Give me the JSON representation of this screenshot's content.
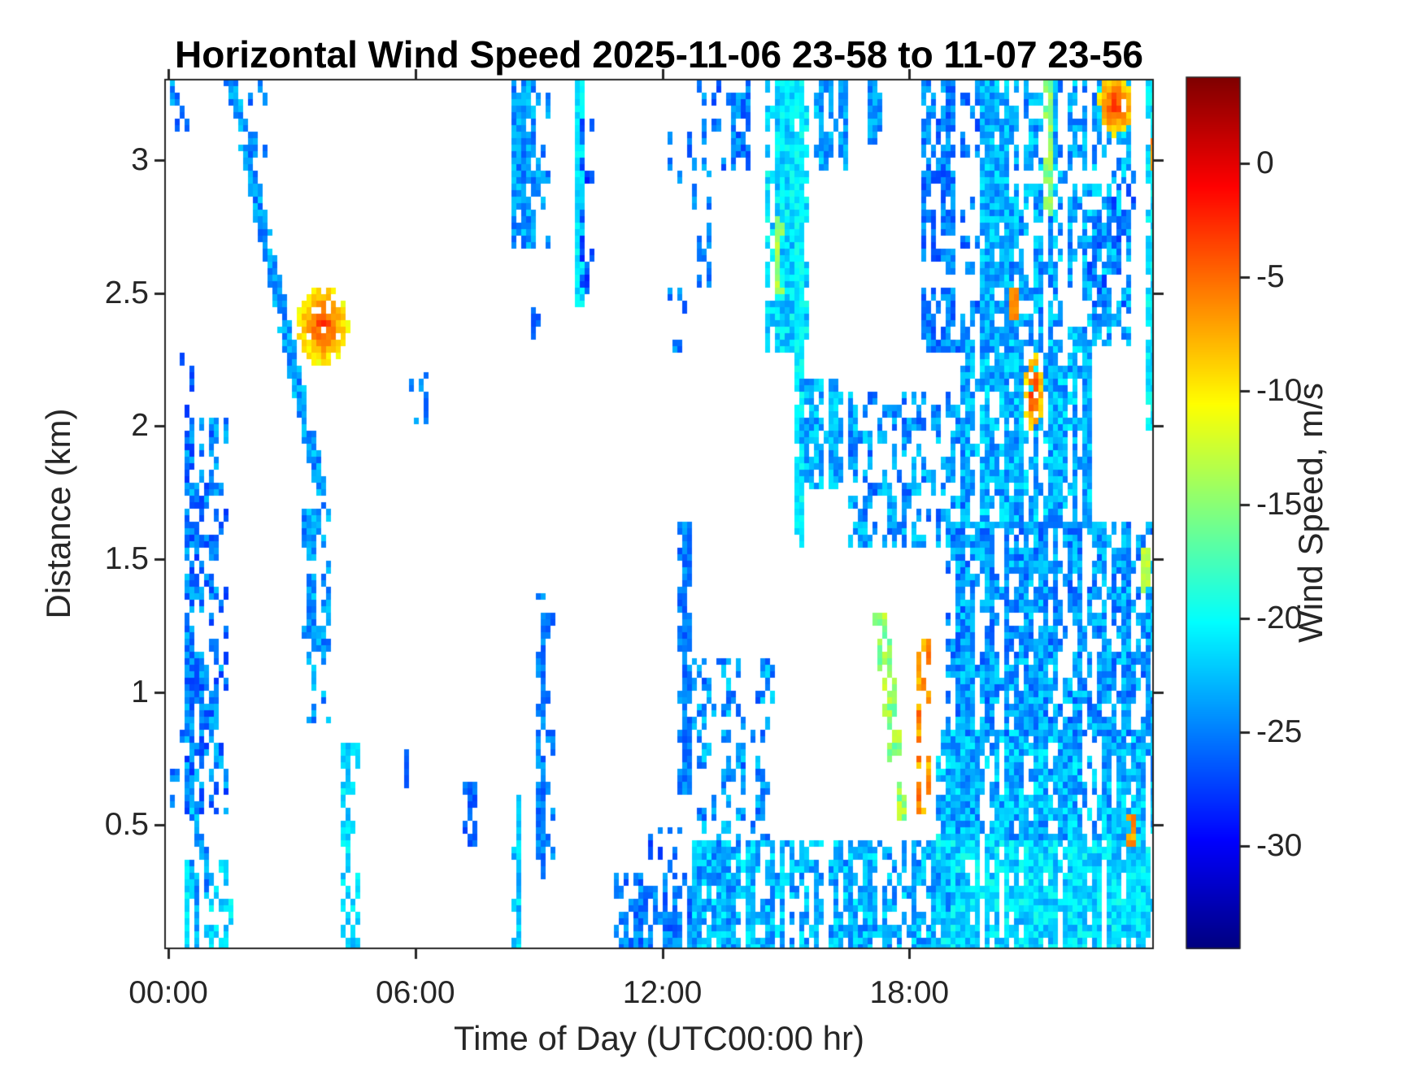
{
  "chart_data": {
    "type": "heatmap",
    "title": "Horizontal Wind Speed 2025-11-06 23-58 to 11-07 23-56",
    "xlabel": "Time of Day (UTC00:00 hr)",
    "ylabel": "Distance (km)",
    "colorbar_label": "Wind Speed, m/s",
    "colormap": "jet",
    "no_data_color": "#ffffff",
    "axis_color": "#262626",
    "grid": false,
    "x_range_hours": [
      -0.08,
      23.92
    ],
    "y_range_km": [
      0.036,
      3.303
    ],
    "clim": [
      -34.5,
      3.8
    ],
    "x_ticks": [
      {
        "hour": 0,
        "label": "00:00"
      },
      {
        "hour": 6,
        "label": "06:00"
      },
      {
        "hour": 12,
        "label": "12:00"
      },
      {
        "hour": 18,
        "label": "18:00"
      }
    ],
    "y_ticks": [
      0.5,
      1,
      1.5,
      2,
      2.5,
      3
    ],
    "colorbar_ticks": [
      0,
      -5,
      -10,
      -15,
      -20,
      -25,
      -30
    ],
    "features": [
      {
        "ty": "c",
        "t": [
          0.15,
          0.6
        ],
        "h": [
          3.08,
          3.3
        ],
        "d": 0.4,
        "v": -25,
        "s": 3
      },
      {
        "ty": "c",
        "t": [
          0.3,
          0.55
        ],
        "h": [
          1.95,
          2.28
        ],
        "d": 0.3,
        "v": -26,
        "s": 2
      },
      {
        "ty": "c",
        "t": [
          0.08,
          0.38
        ],
        "h": [
          0.58,
          0.85
        ],
        "d": 0.3,
        "v": -25,
        "s": 2
      },
      {
        "ty": "c",
        "t": [
          0.4,
          0.52
        ],
        "h": [
          0.04,
          0.36
        ],
        "d": 0.8,
        "v": -21,
        "s": 1.5
      },
      {
        "ty": "c",
        "t": [
          0.48,
          1.42
        ],
        "h": [
          0.55,
          2.02
        ],
        "d": 0.55,
        "v": -25,
        "s": 3
      },
      {
        "ty": "c",
        "t": [
          0.55,
          0.9
        ],
        "h": [
          0.04,
          0.58
        ],
        "d": 0.45,
        "v": -24,
        "s": 3
      },
      {
        "ty": "c",
        "t": [
          1.08,
          1.5
        ],
        "h": [
          0.03,
          0.35
        ],
        "d": 0.6,
        "v": -21.5,
        "s": 2
      },
      {
        "ty": "d",
        "p0": [
          1.52,
          3.3
        ],
        "p1": [
          3.7,
          1.76
        ],
        "w": 0.18,
        "d": 0.88,
        "v": -24,
        "s": 2.5
      },
      {
        "ty": "c",
        "t": [
          2.05,
          2.35
        ],
        "h": [
          2.95,
          3.3
        ],
        "d": 0.35,
        "v": -25,
        "s": 2
      },
      {
        "ty": "c",
        "t": [
          3.3,
          3.9
        ],
        "h": [
          0.9,
          1.7
        ],
        "d": 0.45,
        "v": -24,
        "s": 2.5
      },
      {
        "ty": "c",
        "t": [
          4.25,
          4.6
        ],
        "h": [
          0.04,
          0.8
        ],
        "d": 0.55,
        "v": -21.5,
        "s": 2
      },
      {
        "ty": "b",
        "t": [
          3.17,
          4.33
        ],
        "h": [
          2.24,
          2.52
        ],
        "vc": -3,
        "ve": -10,
        "d": 0.88
      },
      {
        "ty": "c",
        "t": [
          5.78,
          5.92
        ],
        "h": [
          0.64,
          0.78
        ],
        "d": 0.7,
        "v": -26,
        "s": 1
      },
      {
        "ty": "c",
        "t": [
          5.85,
          6.25
        ],
        "h": [
          2.02,
          2.18
        ],
        "d": 0.4,
        "v": -25,
        "s": 2
      },
      {
        "ty": "c",
        "t": [
          7.25,
          7.5
        ],
        "h": [
          0.42,
          0.66
        ],
        "d": 0.45,
        "v": -26,
        "s": 1.5
      },
      {
        "ty": "c",
        "t": [
          8.35,
          8.52
        ],
        "h": [
          0.04,
          0.6
        ],
        "d": 0.75,
        "v": -22,
        "s": 2.5
      },
      {
        "ty": "c",
        "t": [
          8.45,
          9.25
        ],
        "h": [
          2.68,
          3.3
        ],
        "d": 0.7,
        "v": -24,
        "s": 2.5
      },
      {
        "ty": "c",
        "t": [
          9.0,
          9.4
        ],
        "h": [
          0.3,
          1.35
        ],
        "d": 0.5,
        "v": -25,
        "s": 2
      },
      {
        "ty": "c",
        "t": [
          8.9,
          9.0
        ],
        "h": [
          2.33,
          2.44
        ],
        "d": 0.85,
        "v": -26,
        "s": 1
      },
      {
        "ty": "c",
        "t": [
          9.95,
          10.1
        ],
        "h": [
          2.45,
          3.3
        ],
        "d": 0.85,
        "v": -21,
        "s": 1.5
      },
      {
        "ty": "c",
        "t": [
          10.05,
          10.3
        ],
        "h": [
          2.5,
          3.15
        ],
        "d": 0.45,
        "v": -27,
        "s": 2
      },
      {
        "ty": "c",
        "t": [
          10.9,
          12.8
        ],
        "h": [
          0.03,
          0.3
        ],
        "d": 0.55,
        "v": -25,
        "s": 2.5
      },
      {
        "ty": "c",
        "t": [
          11.6,
          12.8
        ],
        "h": [
          0.3,
          0.48
        ],
        "d": 0.25,
        "v": -26,
        "s": 2
      },
      {
        "ty": "c",
        "t": [
          12.15,
          12.8
        ],
        "h": [
          2.82,
          3.15
        ],
        "d": 0.3,
        "v": -25,
        "s": 2
      },
      {
        "ty": "c",
        "t": [
          12.2,
          12.6
        ],
        "h": [
          2.28,
          2.52
        ],
        "d": 0.3,
        "v": -25,
        "s": 2
      },
      {
        "ty": "c",
        "t": [
          12.3,
          12.55
        ],
        "h": [
          1.85,
          2.12
        ],
        "d": 0.28,
        "v": -26,
        "s": 1.5
      },
      {
        "ty": "c",
        "t": [
          12.45,
          12.7
        ],
        "h": [
          0.62,
          1.62
        ],
        "d": 0.7,
        "v": -25,
        "s": 2
      },
      {
        "ty": "c",
        "t": [
          12.85,
          13.15
        ],
        "h": [
          2.52,
          2.85
        ],
        "d": 0.35,
        "v": -25,
        "s": 2
      },
      {
        "ty": "c",
        "t": [
          12.9,
          14.1
        ],
        "h": [
          2.95,
          3.3
        ],
        "d": 0.32,
        "v": -25,
        "s": 2.5
      },
      {
        "ty": "c",
        "t": [
          12.8,
          19.3
        ],
        "h": [
          0.03,
          0.42
        ],
        "d": 0.8,
        "v": -23,
        "s": 3
      },
      {
        "ty": "c",
        "t": [
          12.8,
          14.7
        ],
        "h": [
          0.42,
          1.12
        ],
        "d": 0.38,
        "v": -24,
        "s": 3
      },
      {
        "ty": "c",
        "t": [
          14.55,
          15.45
        ],
        "h": [
          2.3,
          3.3
        ],
        "d": 0.75,
        "v": -21.5,
        "s": 2.5
      },
      {
        "ty": "c",
        "t": [
          15.28,
          15.42
        ],
        "h": [
          1.55,
          3.3
        ],
        "d": 0.85,
        "v": -20.5,
        "s": 1.5
      },
      {
        "ty": "c",
        "t": [
          14.82,
          14.95
        ],
        "h": [
          2.52,
          2.78
        ],
        "d": 0.85,
        "v": -14,
        "s": 1.5
      },
      {
        "ty": "c",
        "t": [
          15.7,
          16.4
        ],
        "h": [
          2.98,
          3.3
        ],
        "d": 0.65,
        "v": -23.5,
        "s": 2.5
      },
      {
        "ty": "c",
        "t": [
          15.35,
          16.45
        ],
        "h": [
          1.78,
          2.16
        ],
        "d": 0.6,
        "v": -23,
        "s": 2.5
      },
      {
        "ty": "c",
        "t": [
          16.55,
          19.5
        ],
        "h": [
          1.55,
          2.12
        ],
        "d": 0.45,
        "v": -24,
        "s": 3
      },
      {
        "ty": "c",
        "t": [
          17.05,
          17.25
        ],
        "h": [
          3.08,
          3.3
        ],
        "d": 0.6,
        "v": -24,
        "s": 2
      },
      {
        "ty": "c",
        "t": [
          18.4,
          19.05
        ],
        "h": [
          2.3,
          3.3
        ],
        "d": 0.55,
        "v": -25,
        "s": 2.5
      },
      {
        "ty": "d",
        "p0": [
          17.3,
          1.28
        ],
        "p1": [
          17.85,
          0.52
        ],
        "w": 0.22,
        "d": 0.7,
        "v": -14.5,
        "s": 2.5
      },
      {
        "ty": "c",
        "t": [
          18.25,
          18.5
        ],
        "h": [
          0.55,
          1.18
        ],
        "d": 0.45,
        "v": -6.5,
        "s": 2.5
      },
      {
        "ty": "c",
        "t": [
          18.7,
          23.95
        ],
        "h": [
          0.03,
          0.45
        ],
        "d": 0.95,
        "v": -21.5,
        "s": 2.5
      },
      {
        "ty": "c",
        "t": [
          18.7,
          23.95
        ],
        "h": [
          0.45,
          0.85
        ],
        "d": 0.85,
        "v": -23,
        "s": 3
      },
      {
        "ty": "c",
        "t": [
          19.0,
          23.95
        ],
        "h": [
          0.85,
          1.62
        ],
        "d": 0.7,
        "v": -24,
        "s": 3
      },
      {
        "ty": "c",
        "t": [
          19.3,
          22.4
        ],
        "h": [
          1.62,
          2.32
        ],
        "d": 0.75,
        "v": -23,
        "s": 3
      },
      {
        "ty": "c",
        "t": [
          19.0,
          19.6
        ],
        "h": [
          2.3,
          3.3
        ],
        "d": 0.3,
        "v": -25,
        "s": 2.5
      },
      {
        "ty": "c",
        "t": [
          19.78,
          20.35
        ],
        "h": [
          2.32,
          3.3
        ],
        "d": 0.8,
        "v": -23,
        "s": 2.5
      },
      {
        "ty": "c",
        "t": [
          20.5,
          23.3
        ],
        "h": [
          2.32,
          3.3
        ],
        "d": 0.45,
        "v": -23.5,
        "s": 3
      },
      {
        "ty": "c",
        "t": [
          21.3,
          21.45
        ],
        "h": [
          2.8,
          3.3
        ],
        "d": 0.85,
        "v": -15,
        "s": 2
      },
      {
        "ty": "c",
        "t": [
          22.3,
          23.4
        ],
        "h": [
          2.45,
          2.95
        ],
        "d": 0.25,
        "v": -26,
        "s": 2
      },
      {
        "ty": "c",
        "t": [
          20.52,
          20.62
        ],
        "h": [
          2.42,
          2.52
        ],
        "d": 0.9,
        "v": -6,
        "s": 1
      },
      {
        "ty": "b",
        "t": [
          20.82,
          21.22
        ],
        "h": [
          1.98,
          2.26
        ],
        "vc": -2,
        "ve": -9,
        "d": 0.78
      },
      {
        "ty": "b",
        "t": [
          22.62,
          23.38
        ],
        "h": [
          3.1,
          3.32
        ],
        "vc": -2.5,
        "ve": -9,
        "d": 0.88
      },
      {
        "ty": "c",
        "t": [
          23.8,
          23.95
        ],
        "h": [
          2.0,
          3.3
        ],
        "d": 0.75,
        "v": -21,
        "s": 2
      },
      {
        "ty": "c",
        "t": [
          23.87,
          23.95
        ],
        "h": [
          2.98,
          3.08
        ],
        "d": 1.0,
        "v": -6,
        "s": 1
      },
      {
        "ty": "c",
        "t": [
          23.7,
          23.8
        ],
        "h": [
          1.38,
          1.52
        ],
        "d": 0.9,
        "v": -13,
        "s": 1
      },
      {
        "ty": "c",
        "t": [
          23.35,
          23.45
        ],
        "h": [
          0.42,
          0.54
        ],
        "d": 0.9,
        "v": -7,
        "s": 2
      }
    ]
  }
}
